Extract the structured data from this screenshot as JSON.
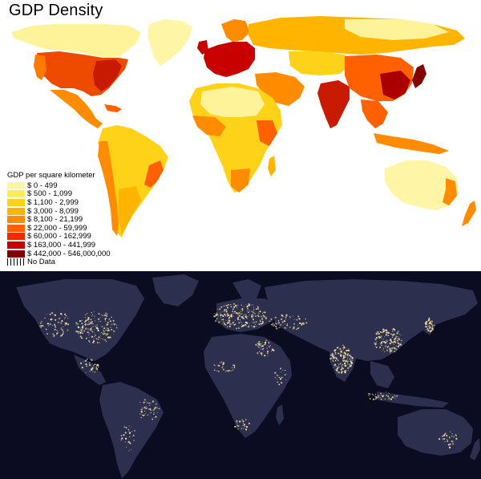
{
  "title": "GDP Density",
  "legend": {
    "title": "GDP per square kilometer",
    "items": [
      {
        "label": "$ 0 - 499",
        "color": "#fff5a6"
      },
      {
        "label": "$ 500 - 1,099",
        "color": "#ffec5c"
      },
      {
        "label": "$ 1,100 - 2,999",
        "color": "#ffd21a"
      },
      {
        "label": "$ 3,000 - 8,099",
        "color": "#ffb400"
      },
      {
        "label": "$ 8,100 - 21,199",
        "color": "#ff8c00"
      },
      {
        "label": "$ 22,000 - 59,999",
        "color": "#ff6000"
      },
      {
        "label": "$ 60,000 - 162,999",
        "color": "#ee2c00"
      },
      {
        "label": "$ 163,000 - 441,999",
        "color": "#c80000"
      },
      {
        "label": "$ 442,000 - 546,000,000",
        "color": "#820000"
      },
      {
        "label": "No Data",
        "color": "hatched"
      }
    ]
  },
  "night_map": {
    "background_color": "#0b0c22",
    "land_color": "#2c2f4d",
    "light_color": "#ffe9a8"
  }
}
